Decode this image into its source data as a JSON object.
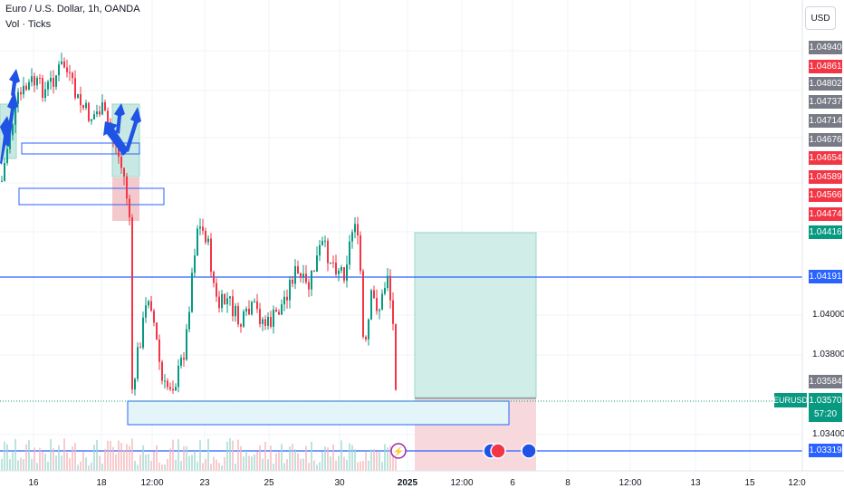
{
  "header": {
    "title": "Euro / U.S. Dollar, 1h, OANDA",
    "indicator": "Vol · Ticks"
  },
  "currency_button": "USD",
  "symbol": "EURUSD",
  "current_price": {
    "value": "1.03570",
    "countdown": "57:20",
    "color": "#089981"
  },
  "price_labels": [
    {
      "value": "1.04940",
      "color": "#787b86"
    },
    {
      "value": "1.04861",
      "color": "#f23645"
    },
    {
      "value": "1.04802",
      "color": "#787b86"
    },
    {
      "value": "1.04737",
      "color": "#787b86"
    },
    {
      "value": "1.04714",
      "color": "#787b86"
    },
    {
      "value": "1.04676",
      "color": "#787b86"
    },
    {
      "value": "1.04654",
      "color": "#f23645"
    },
    {
      "value": "1.04589",
      "color": "#f23645"
    },
    {
      "value": "1.04566",
      "color": "#f23645"
    },
    {
      "value": "1.04474",
      "color": "#f23645"
    },
    {
      "value": "1.04416",
      "color": "#089981"
    },
    {
      "value": "1.04191",
      "color": "#2962ff"
    },
    {
      "value": "1.03584",
      "color": "#787b86"
    },
    {
      "value": "1.03319",
      "color": "#2962ff"
    }
  ],
  "price_axis": [
    "1.04000",
    "1.03800",
    "1.03400"
  ],
  "time_axis": [
    {
      "label": "16",
      "bold": false
    },
    {
      "label": "18",
      "bold": false
    },
    {
      "label": "12:00",
      "bold": false
    },
    {
      "label": "23",
      "bold": false
    },
    {
      "label": "25",
      "bold": false
    },
    {
      "label": "30",
      "bold": false
    },
    {
      "label": "2025",
      "bold": true
    },
    {
      "label": "12:00",
      "bold": false
    },
    {
      "label": "6",
      "bold": false
    },
    {
      "label": "8",
      "bold": false
    },
    {
      "label": "12:00",
      "bold": false
    },
    {
      "label": "13",
      "bold": false
    },
    {
      "label": "15",
      "bold": false
    },
    {
      "label": "12:0",
      "bold": false
    }
  ],
  "colors": {
    "up": "#089981",
    "down": "#f23645",
    "line": "#2962ff",
    "long_target": "#d1ede7",
    "long_stop": "#f7d9dd"
  }
}
